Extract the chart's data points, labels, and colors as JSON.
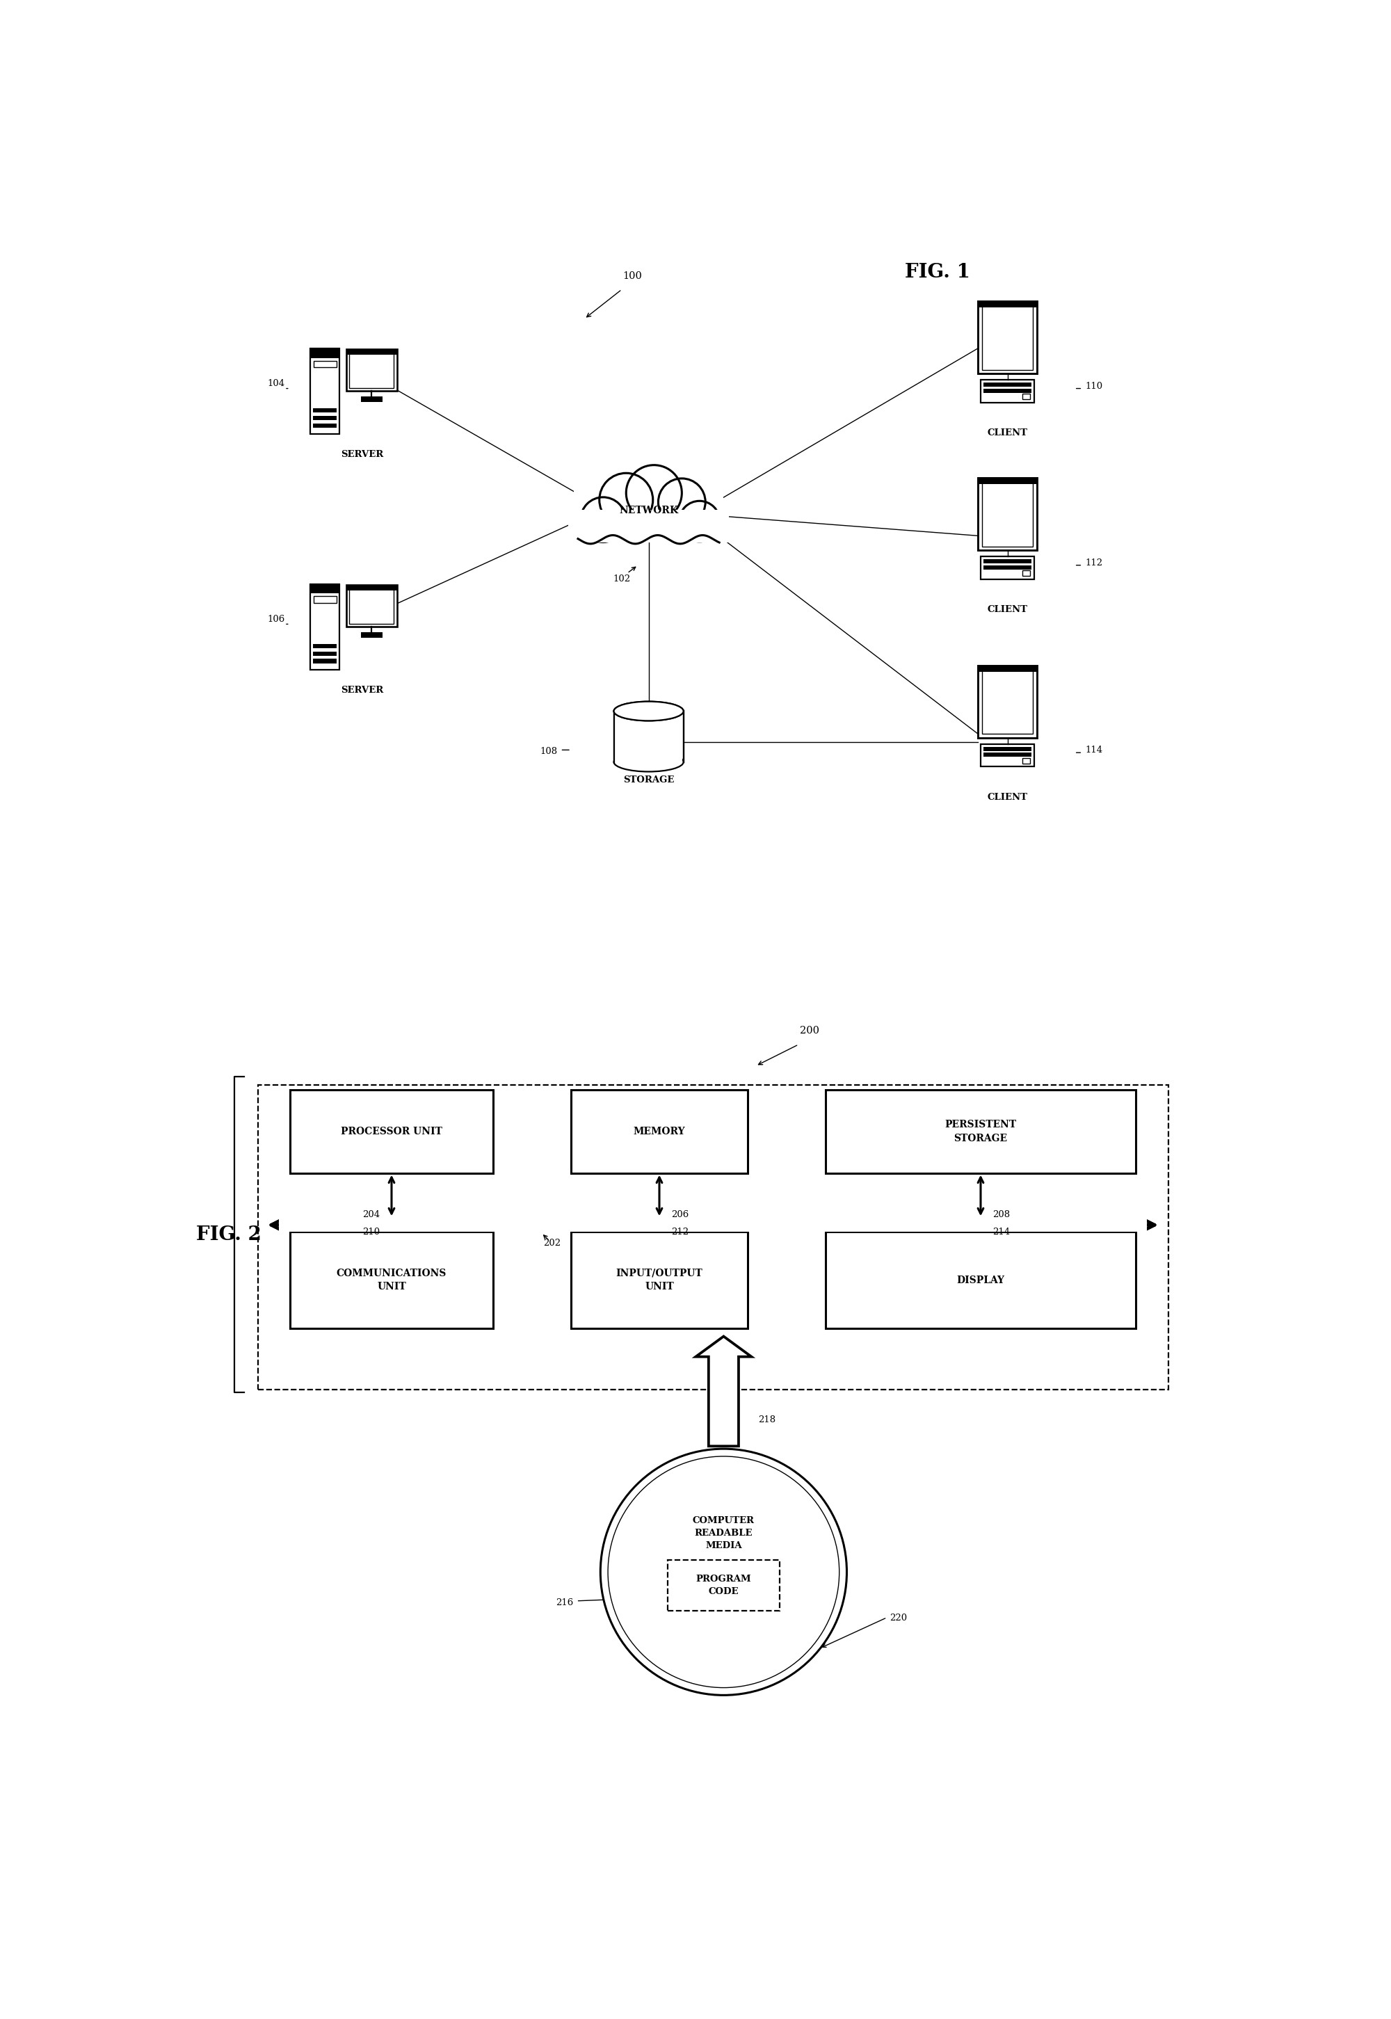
{
  "fig_width": 20.0,
  "fig_height": 29.03,
  "bg_color": "#ffffff",
  "line_color": "#000000",
  "fig1_label": "FIG. 1",
  "fig2_label": "FIG. 2",
  "network_label": "NETWORK",
  "storage_label": "STORAGE",
  "server_label": "SERVER",
  "client_label": "CLIENT",
  "ref_100": "100",
  "ref_102": "102",
  "ref_104": "104",
  "ref_106": "106",
  "ref_108": "108",
  "ref_110": "110",
  "ref_112": "112",
  "ref_114": "114",
  "ref_200": "200",
  "ref_202": "202",
  "ref_204": "204",
  "ref_206": "206",
  "ref_208": "208",
  "ref_210": "210",
  "ref_212": "212",
  "ref_214": "214",
  "ref_216": "216",
  "ref_218": "218",
  "ref_220": "220",
  "box1_label": "PROCESSOR UNIT",
  "box2_label": "MEMORY",
  "box3_label": "PERSISTENT\nSTORAGE",
  "box4_label": "COMMUNICATIONS\nUNIT",
  "box5_label": "INPUT/OUTPUT\nUNIT",
  "box6_label": "DISPLAY",
  "media_label": "COMPUTER\nREADABLE\nMEDIA",
  "program_label": "PROGRAM\nCODE"
}
